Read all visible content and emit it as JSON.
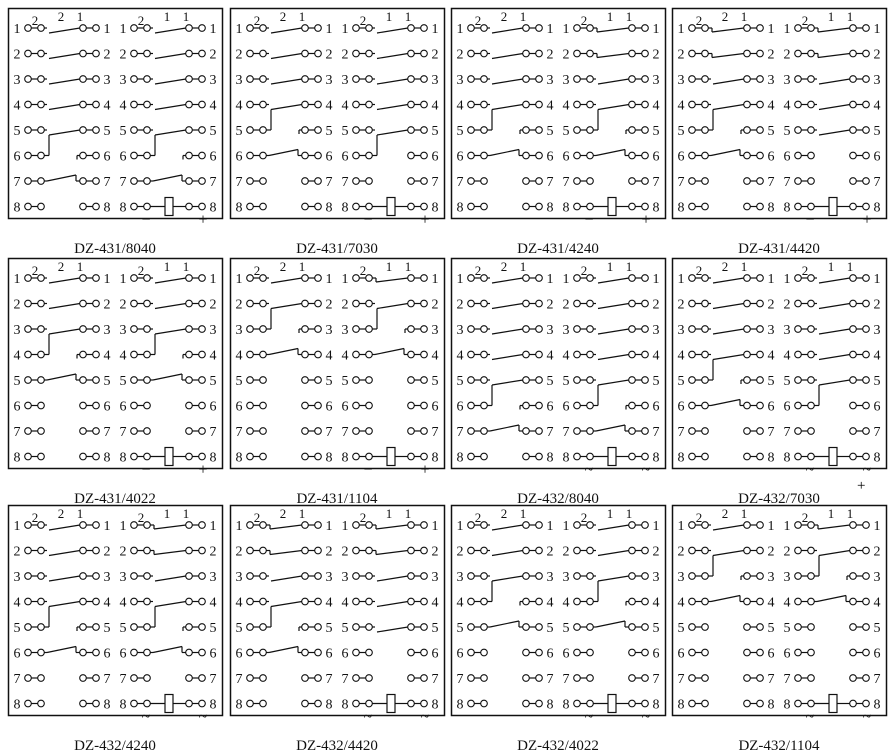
{
  "terminal_numbers": [
    "1",
    "2",
    "3",
    "4",
    "5",
    "6",
    "7",
    "8"
  ],
  "top_labels": {
    "left": [
      "2",
      "2",
      "1"
    ],
    "right": [
      "2",
      "1",
      "1"
    ]
  },
  "legend_codes": {
    "M": "make contact",
    "J": "make contact with hooked stub",
    "C": "changeover upper",
    "c": "changeover lower with break",
    "n": "changeover lower without break",
    "B": "break contact",
    "N": "no contact",
    "K": "coil"
  },
  "panels": [
    {
      "label": "DZ-431/8040",
      "left": [
        "M",
        "M",
        "M",
        "M",
        "C",
        "c",
        "B",
        "N"
      ],
      "right": [
        "M",
        "M",
        "M",
        "M",
        "C",
        "c",
        "B",
        "K"
      ],
      "coil_signs": [
        "−",
        "+"
      ]
    },
    {
      "label": "DZ-431/7030",
      "left": [
        "M",
        "M",
        "M",
        "C",
        "c",
        "B",
        "N",
        "N"
      ],
      "right": [
        "M",
        "M",
        "M",
        "M",
        "C",
        "n",
        "N",
        "K"
      ],
      "coil_signs": [
        "−",
        "+"
      ]
    },
    {
      "label": "DZ-431/4240",
      "left": [
        "M",
        "M",
        "M",
        "C",
        "c",
        "B",
        "N",
        "N"
      ],
      "right": [
        "J",
        "J",
        "M",
        "C",
        "c",
        "B",
        "N",
        "K"
      ],
      "coil_signs": [
        "−",
        "+"
      ]
    },
    {
      "label": "DZ-431/4420",
      "left": [
        "J",
        "J",
        "M",
        "C",
        "c",
        "B",
        "N",
        "N"
      ],
      "right": [
        "J",
        "J",
        "M",
        "M",
        "M",
        "N",
        "N",
        "K"
      ],
      "coil_signs": [
        "−",
        "+"
      ]
    },
    {
      "label": "DZ-431/4022",
      "left": [
        "M",
        "M",
        "C",
        "c",
        "B",
        "N",
        "N",
        "N"
      ],
      "right": [
        "M",
        "M",
        "C",
        "c",
        "B",
        "N",
        "N",
        "K"
      ],
      "coil_signs": [
        "−",
        "+"
      ]
    },
    {
      "label": "DZ-431/1104",
      "left": [
        "M",
        "C",
        "c",
        "B",
        "N",
        "N",
        "N",
        "N"
      ],
      "right": [
        "J",
        "C",
        "c",
        "B",
        "N",
        "N",
        "N",
        "K"
      ],
      "coil_signs": [
        "−",
        "+"
      ]
    },
    {
      "label": "DZ-432/8040",
      "left": [
        "M",
        "M",
        "M",
        "M",
        "C",
        "c",
        "B",
        "N"
      ],
      "right": [
        "M",
        "M",
        "M",
        "M",
        "C",
        "c",
        "B",
        "K"
      ],
      "coil_signs": [
        "~",
        "~"
      ]
    },
    {
      "label": "DZ-432/7030",
      "left": [
        "M",
        "M",
        "M",
        "C",
        "c",
        "B",
        "N",
        "N"
      ],
      "right": [
        "M",
        "M",
        "M",
        "M",
        "C",
        "n",
        "N",
        "K"
      ],
      "coil_signs": [
        "~",
        "~"
      ]
    },
    {
      "label": "DZ-432/4240",
      "left": [
        "M",
        "M",
        "M",
        "C",
        "c",
        "B",
        "N",
        "N"
      ],
      "right": [
        "J",
        "J",
        "M",
        "C",
        "c",
        "B",
        "N",
        "K"
      ],
      "coil_signs": [
        "~",
        "~"
      ]
    },
    {
      "label": "DZ-432/4420",
      "left": [
        "J",
        "J",
        "M",
        "C",
        "c",
        "B",
        "N",
        "N"
      ],
      "right": [
        "J",
        "J",
        "M",
        "M",
        "M",
        "N",
        "N",
        "K"
      ],
      "coil_signs": [
        "~",
        "~"
      ]
    },
    {
      "label": "DZ-432/4022",
      "left": [
        "M",
        "M",
        "C",
        "c",
        "B",
        "N",
        "N",
        "N"
      ],
      "right": [
        "M",
        "M",
        "C",
        "c",
        "B",
        "N",
        "N",
        "K"
      ],
      "coil_signs": [
        "~",
        "~"
      ]
    },
    {
      "label": "DZ-432/1104",
      "left": [
        "M",
        "C",
        "c",
        "B",
        "N",
        "N",
        "N",
        "N"
      ],
      "right": [
        "J",
        "C",
        "c",
        "B",
        "N",
        "N",
        "N",
        "K"
      ],
      "coil_signs": [
        "~",
        "~"
      ]
    }
  ],
  "stray_mark": "+"
}
